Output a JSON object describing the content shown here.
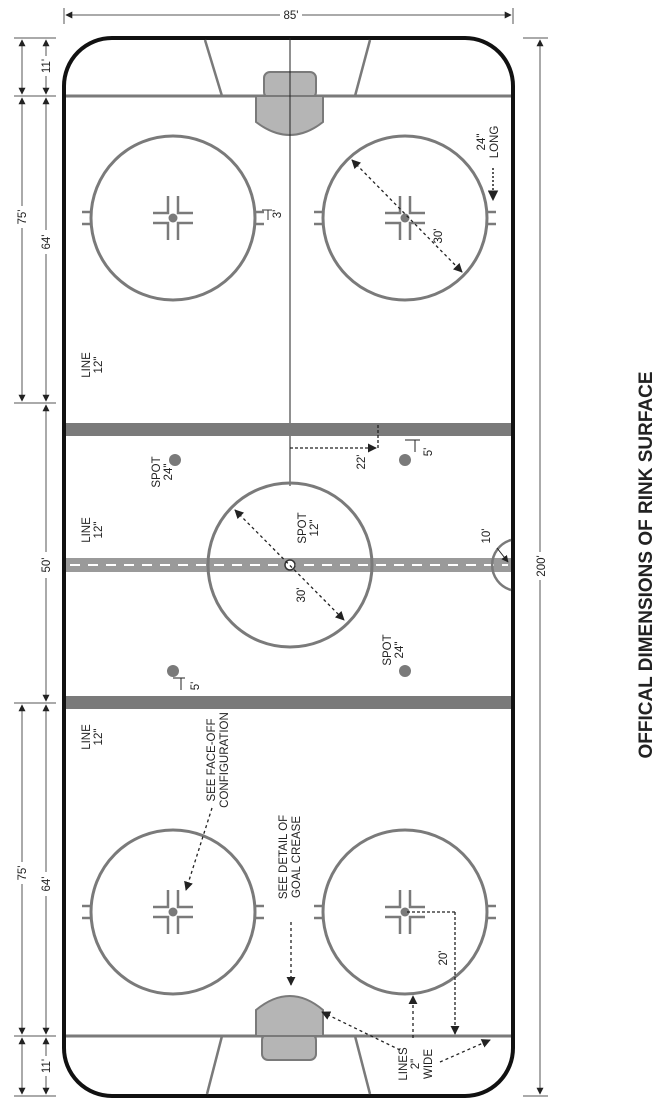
{
  "title": "OFFICAL DIMENSIONS OF RINK SURFACE",
  "dimensions": {
    "width": "85'",
    "length": "200'",
    "end_zone_gap_top": "11'",
    "end_zone_gap_bottom": "11'",
    "zone_top": "75'",
    "zone_bottom": "75'",
    "circle_span_top": "64'",
    "circle_span_bottom": "64'",
    "neutral_zone": "50'",
    "hash_gap": "3'",
    "circle_diameter_upper": "30'",
    "circle_diameter_center": "30'",
    "spot_offset_line": "22'",
    "spot_offset_side": "5'",
    "spot_offset_side_lower": "5'",
    "referee_crease": "10'",
    "dot_to_goal_line": "20'"
  },
  "labels": {
    "hash_length": [
      "24\"",
      "LONG"
    ],
    "line_upper": [
      "LINE",
      "12\""
    ],
    "line_center": [
      "LINE",
      "12\""
    ],
    "line_lower": [
      "LINE",
      "12\""
    ],
    "spot_left": [
      "SPOT",
      "24\""
    ],
    "spot_center": [
      "SPOT",
      "12\""
    ],
    "spot_right": [
      "SPOT",
      "24\""
    ],
    "faceoff_note": [
      "SEE FACE-OFF",
      "CONFIGURATION"
    ],
    "crease_note": [
      "SEE DETAIL OF",
      "GOAL CREASE"
    ],
    "lines_note": [
      "LINES",
      "2\"",
      "WIDE"
    ]
  },
  "colors": {
    "outline": "#111111",
    "markings": "#7a7a7a",
    "crease_fill": "#b5b5b5",
    "text": "#222222"
  }
}
